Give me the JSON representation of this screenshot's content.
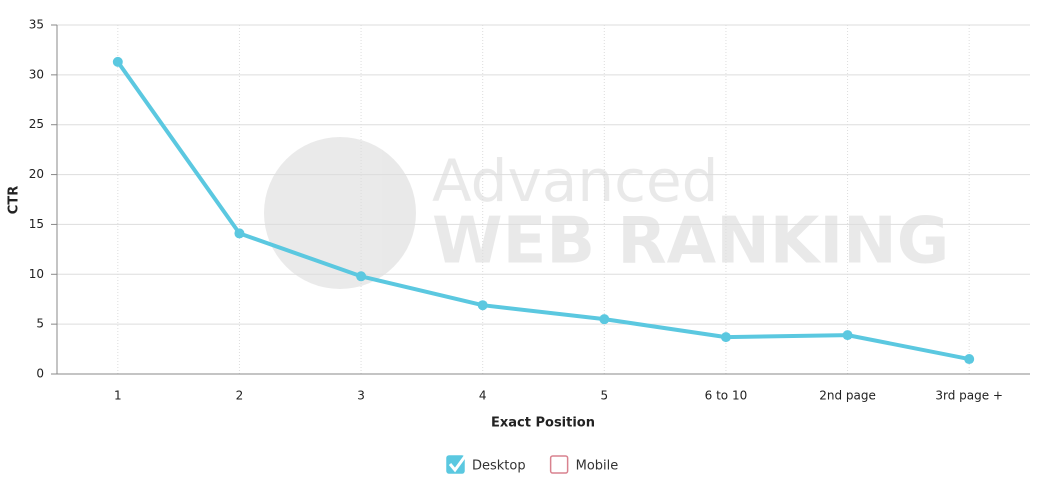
{
  "chart_data": {
    "type": "line",
    "x_label": "Exact Position",
    "y_label": "CTR",
    "watermark": [
      "Advanced",
      "WEB RANKING"
    ],
    "categories": [
      "1",
      "2",
      "3",
      "4",
      "5",
      "6 to 10",
      "2nd page",
      "3rd page +"
    ],
    "series": [
      {
        "name": "Desktop",
        "color": "#5bc8e0",
        "checked": true,
        "values": [
          31.3,
          14.1,
          9.8,
          6.9,
          5.5,
          3.7,
          3.9,
          1.5
        ]
      },
      {
        "name": "Mobile",
        "color": "#d9828f",
        "checked": false,
        "values": [
          null,
          null,
          null,
          null,
          null,
          null,
          null,
          null
        ]
      }
    ],
    "ylim": [
      0,
      35
    ],
    "yticks": [
      0,
      5,
      10,
      15,
      20,
      25,
      30,
      35
    ],
    "grid": true
  }
}
